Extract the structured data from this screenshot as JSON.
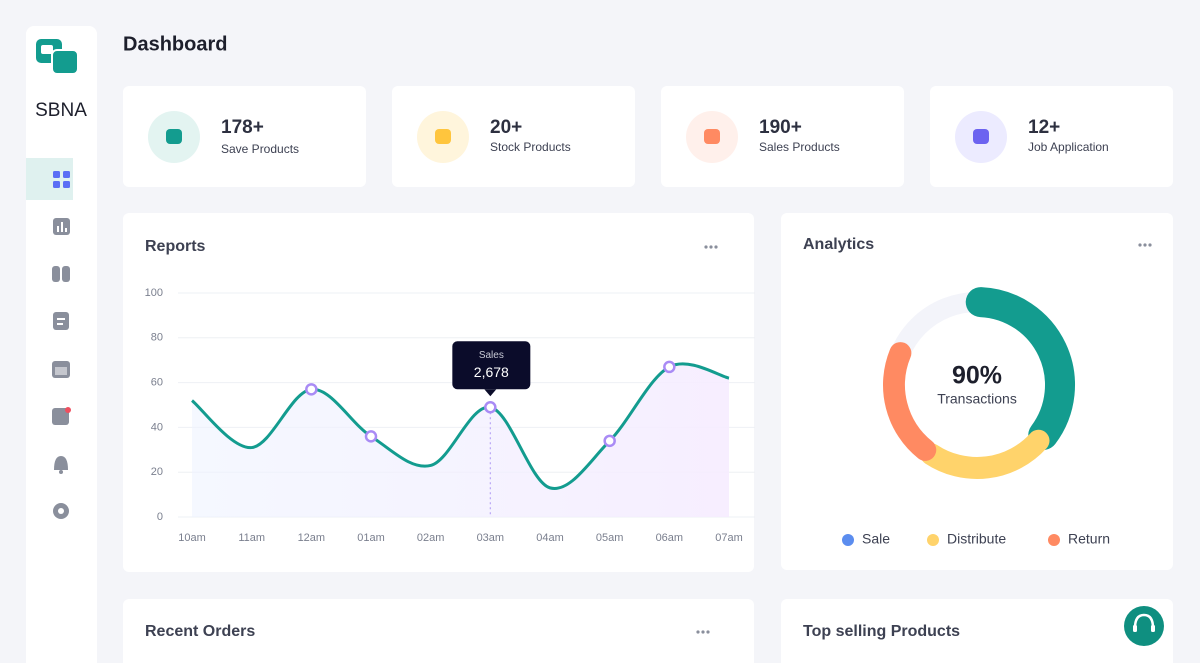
{
  "sidebar": {
    "brand": "SBNA"
  },
  "header": {
    "title": "Dashboard"
  },
  "stats": [
    {
      "value": "178+",
      "label": "Save Products"
    },
    {
      "value": "20+",
      "label": "Stock Products"
    },
    {
      "value": "190+",
      "label": "Sales Products"
    },
    {
      "value": "12+",
      "label": "Job Application"
    }
  ],
  "chart_data": [
    {
      "type": "line",
      "title": "Reports",
      "categories": [
        "10am",
        "11am",
        "12am",
        "01am",
        "02am",
        "03am",
        "04am",
        "05am",
        "06am",
        "07am"
      ],
      "series": [
        {
          "name": "Sales",
          "color": "#139c8f",
          "values": [
            52,
            31,
            57,
            36,
            23,
            49,
            13,
            34,
            67,
            62
          ]
        }
      ],
      "ylim": [
        0,
        100
      ],
      "yticks": [
        0,
        20,
        40,
        60,
        80,
        100
      ],
      "grid": true,
      "tooltip": "2,678"
    },
    {
      "type": "pie",
      "title": "Analytics",
      "center_value": "90%",
      "center_label": "Transactions",
      "categories": [
        "Sale",
        "Distribute",
        "Return"
      ],
      "values": [
        36,
        24,
        22
      ],
      "colors": [
        "#139c8f",
        "#ffd36b",
        "#ff8a62"
      ],
      "legend_colors": [
        "#5b8def",
        "#ffd36b",
        "#ff8a62"
      ]
    }
  ],
  "sections": [
    "Recent Orders",
    "Top selling Products"
  ]
}
